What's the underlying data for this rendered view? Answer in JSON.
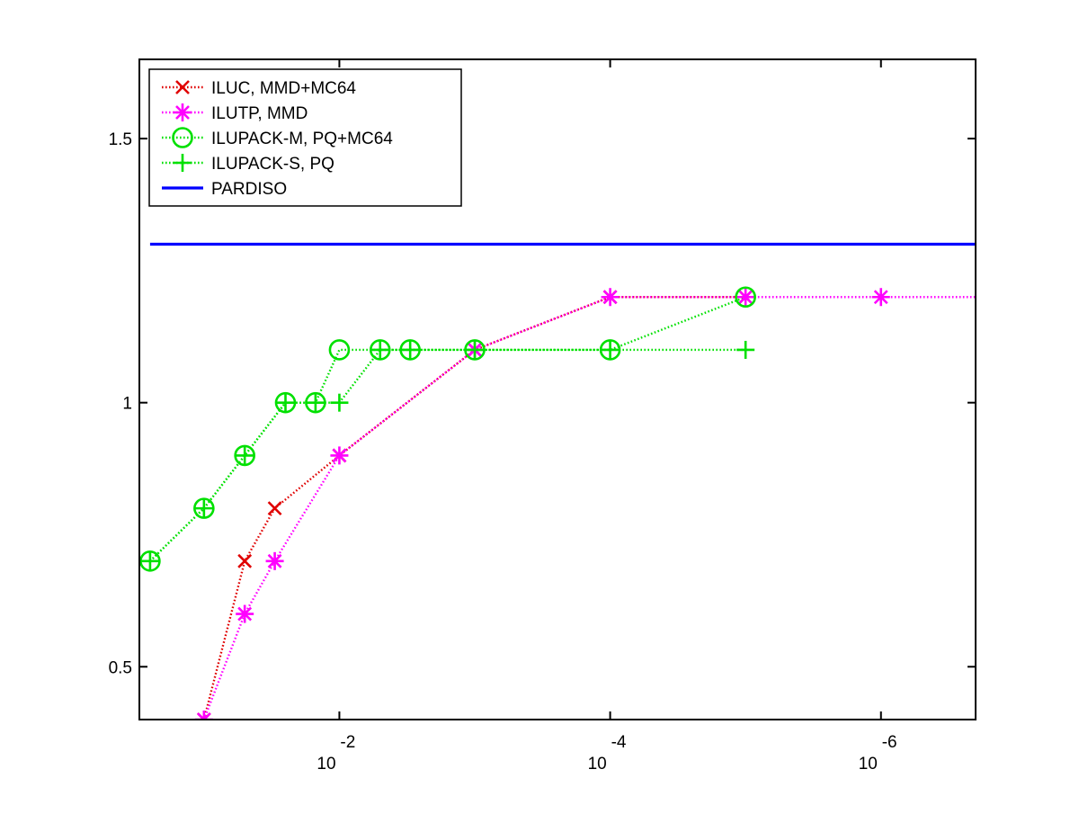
{
  "chart_data": {
    "type": "line",
    "title": "",
    "xlabel": "",
    "ylabel": "",
    "x_scale": "log",
    "x_reversed": true,
    "xlim": [
      0.3,
      2e-07
    ],
    "ylim": [
      0.4,
      1.65
    ],
    "x_ticks": [
      {
        "value": 0.01,
        "base": "10",
        "exponent": "-2"
      },
      {
        "value": 0.0001,
        "base": "10",
        "exponent": "-4"
      },
      {
        "value": 1e-06,
        "base": "10",
        "exponent": "-6"
      }
    ],
    "y_ticks": [
      {
        "value": 0.5,
        "label": "0.5"
      },
      {
        "value": 1,
        "label": "1"
      },
      {
        "value": 1.5,
        "label": "1.5"
      }
    ],
    "grid": false,
    "legend_position": "top-left",
    "series": [
      {
        "name": "ILUC, MMD+MC64",
        "color": "#e00000",
        "marker": "x",
        "line_style": "dotted",
        "x": [
          0.1,
          0.05,
          0.03,
          0.01,
          0.001,
          0.0001,
          1e-05
        ],
        "y": [
          0.4,
          0.7,
          0.8,
          0.9,
          1.1,
          1.2,
          1.2
        ]
      },
      {
        "name": "ILUTP, MMD",
        "color": "#ff00ff",
        "marker": "asterisk",
        "line_style": "dotted",
        "x": [
          0.1,
          0.05,
          0.03,
          0.01,
          0.001,
          0.0001,
          1e-05,
          1e-06,
          1e-07
        ],
        "y": [
          0.4,
          0.6,
          0.7,
          0.9,
          1.1,
          1.2,
          1.2,
          1.2,
          1.2
        ]
      },
      {
        "name": "ILUPACK-M, PQ+MC64",
        "color": "#00e000",
        "marker": "circle",
        "line_style": "dotted",
        "x": [
          0.25,
          0.1,
          0.05,
          0.025,
          0.015,
          0.01,
          0.005,
          0.003,
          0.001,
          0.0001,
          1e-05
        ],
        "y": [
          0.7,
          0.8,
          0.9,
          1.0,
          1.0,
          1.1,
          1.1,
          1.1,
          1.1,
          1.1,
          1.2
        ]
      },
      {
        "name": "ILUPACK-S, PQ",
        "color": "#00e000",
        "marker": "plus",
        "line_style": "dotted",
        "x": [
          0.25,
          0.1,
          0.05,
          0.025,
          0.015,
          0.01,
          0.005,
          0.003,
          0.001,
          0.0001,
          1e-05
        ],
        "y": [
          0.7,
          0.8,
          0.9,
          1.0,
          1.0,
          1.0,
          1.1,
          1.1,
          1.1,
          1.1,
          1.1
        ]
      },
      {
        "name": "PARDISO",
        "color": "#0000ff",
        "marker": "none",
        "line_style": "solid",
        "x": [
          0.25,
          1e-07
        ],
        "y": [
          1.3,
          1.3
        ]
      }
    ]
  }
}
